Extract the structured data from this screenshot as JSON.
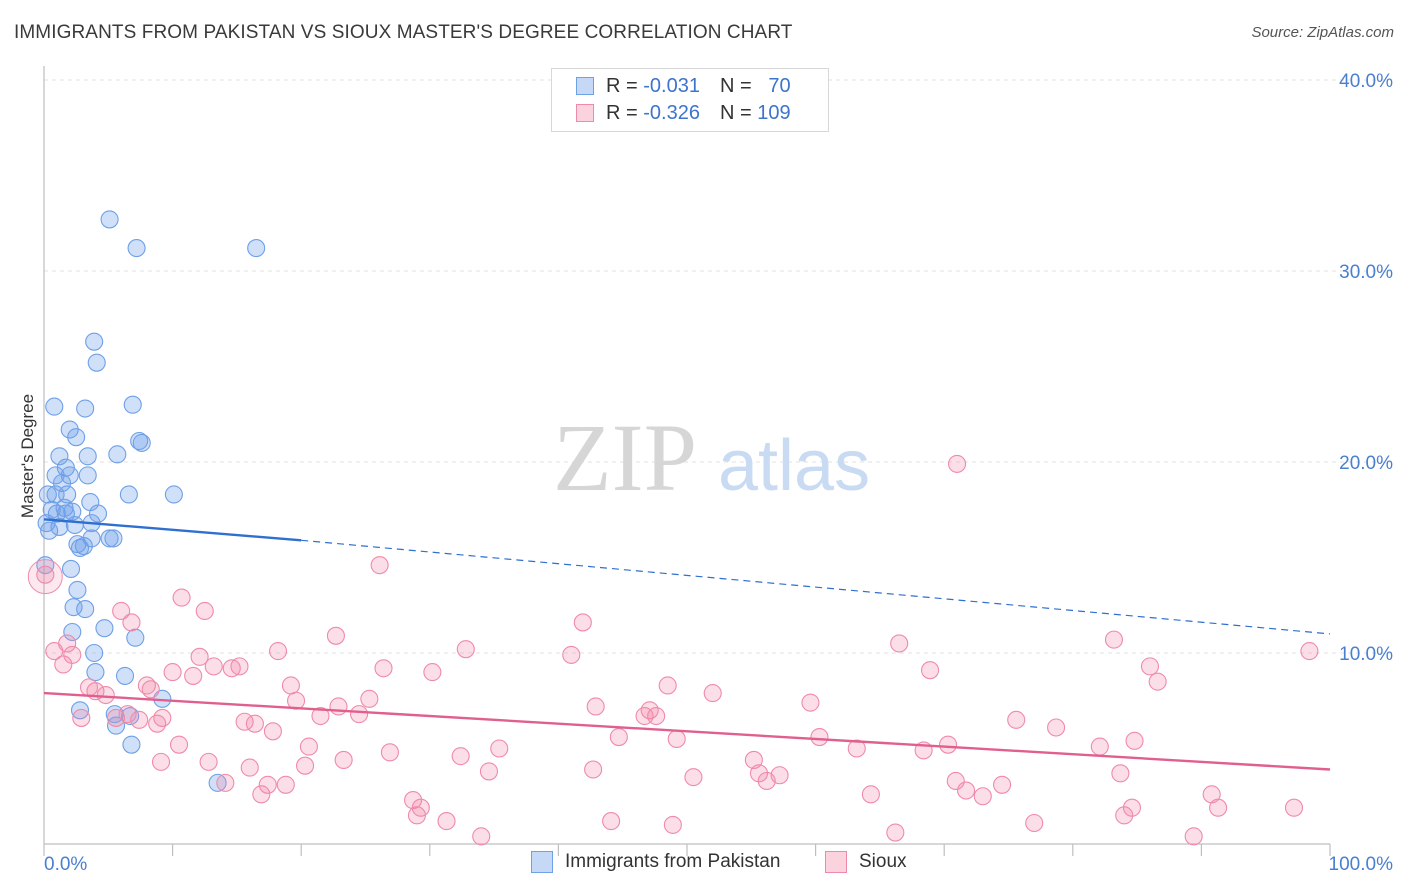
{
  "title": "IMMIGRANTS FROM PAKISTAN VS SIOUX MASTER'S DEGREE CORRELATION CHART",
  "source": "Source: ZipAtlas.com",
  "watermark": {
    "zip": "ZIP",
    "atlas": "atlas"
  },
  "legend": {
    "r_label": "R =",
    "n_label": "N =",
    "rows": [
      {
        "name": "Immigrants from Pakistan",
        "r": "-0.031",
        "n": "70",
        "color": "#6ea0e8"
      },
      {
        "name": "Sioux",
        "r": "-0.326",
        "n": "109",
        "color": "#f08aaa"
      }
    ]
  },
  "bottom_legend": [
    "Immigrants from Pakistan",
    "Sioux"
  ],
  "chart_data": {
    "type": "scatter",
    "title": "IMMIGRANTS FROM PAKISTAN VS SIOUX MASTER'S DEGREE CORRELATION CHART",
    "xlabel": "",
    "ylabel": "Master's Degree",
    "xlim": [
      0,
      100
    ],
    "ylim": [
      0,
      40
    ],
    "x_tick_labels": [
      "0.0%",
      "100.0%"
    ],
    "y_ticks": [
      10,
      20,
      30,
      40
    ],
    "y_tick_labels": [
      "10.0%",
      "20.0%",
      "30.0%",
      "40.0%"
    ],
    "grid": true,
    "series": [
      {
        "name": "Immigrants from Pakistan",
        "color": "#6ea0e8",
        "line_color": "#2f6fd0",
        "trend": {
          "x0": 0,
          "y0": 17.0,
          "x1": 20,
          "y1": 15.9,
          "dashed_to_x": 100,
          "dashed_to_y": 11.0
        },
        "points": [
          [
            5.1,
            32.7
          ],
          [
            7.2,
            31.2
          ],
          [
            16.5,
            31.2
          ],
          [
            3.9,
            26.3
          ],
          [
            4.1,
            25.2
          ],
          [
            0.8,
            22.9
          ],
          [
            3.2,
            22.8
          ],
          [
            6.9,
            23.0
          ],
          [
            2.0,
            21.7
          ],
          [
            2.5,
            21.3
          ],
          [
            7.4,
            21.1
          ],
          [
            7.6,
            21.0
          ],
          [
            1.2,
            20.3
          ],
          [
            3.4,
            20.3
          ],
          [
            5.7,
            20.4
          ],
          [
            1.7,
            19.7
          ],
          [
            2.0,
            19.3
          ],
          [
            0.9,
            19.3
          ],
          [
            3.4,
            19.3
          ],
          [
            1.4,
            18.9
          ],
          [
            0.3,
            18.3
          ],
          [
            0.9,
            18.3
          ],
          [
            1.8,
            18.3
          ],
          [
            6.6,
            18.3
          ],
          [
            10.1,
            18.3
          ],
          [
            3.6,
            17.9
          ],
          [
            1.6,
            17.6
          ],
          [
            2.2,
            17.4
          ],
          [
            0.6,
            17.5
          ],
          [
            1.0,
            17.3
          ],
          [
            4.2,
            17.3
          ],
          [
            1.7,
            17.3
          ],
          [
            0.2,
            16.8
          ],
          [
            1.2,
            16.6
          ],
          [
            2.4,
            16.7
          ],
          [
            3.7,
            16.8
          ],
          [
            0.4,
            16.4
          ],
          [
            3.7,
            16.0
          ],
          [
            5.1,
            16.0
          ],
          [
            5.4,
            16.0
          ],
          [
            2.6,
            15.7
          ],
          [
            3.1,
            15.6
          ],
          [
            2.8,
            15.5
          ],
          [
            0.1,
            14.6
          ],
          [
            2.1,
            14.4
          ],
          [
            2.6,
            13.3
          ],
          [
            2.3,
            12.4
          ],
          [
            3.2,
            12.3
          ],
          [
            2.2,
            11.1
          ],
          [
            4.7,
            11.3
          ],
          [
            7.1,
            10.8
          ],
          [
            3.9,
            10.0
          ],
          [
            4.0,
            9.0
          ],
          [
            6.3,
            8.8
          ],
          [
            9.2,
            7.6
          ],
          [
            2.8,
            7.0
          ],
          [
            5.5,
            6.8
          ],
          [
            5.6,
            6.2
          ],
          [
            6.7,
            6.7
          ],
          [
            6.8,
            5.2
          ],
          [
            13.5,
            3.2
          ]
        ]
      },
      {
        "name": "Sioux",
        "color": "#f08aaa",
        "line_color": "#e05f8f",
        "trend": {
          "x0": 0,
          "y0": 7.9,
          "x1": 100,
          "y1": 3.9
        },
        "points": [
          [
            0.1,
            14.1
          ],
          [
            0.8,
            10.1
          ],
          [
            1.5,
            9.4
          ],
          [
            1.8,
            10.5
          ],
          [
            2.2,
            9.9
          ],
          [
            2.9,
            6.6
          ],
          [
            3.5,
            8.2
          ],
          [
            4.0,
            8.0
          ],
          [
            4.8,
            7.8
          ],
          [
            5.6,
            6.6
          ],
          [
            6.0,
            12.2
          ],
          [
            6.5,
            6.8
          ],
          [
            6.8,
            11.6
          ],
          [
            7.4,
            6.5
          ],
          [
            8.0,
            8.3
          ],
          [
            8.3,
            8.1
          ],
          [
            8.8,
            6.3
          ],
          [
            9.1,
            4.3
          ],
          [
            9.2,
            6.6
          ],
          [
            10.0,
            9.0
          ],
          [
            10.5,
            5.2
          ],
          [
            10.7,
            12.9
          ],
          [
            11.6,
            8.8
          ],
          [
            12.1,
            9.8
          ],
          [
            12.5,
            12.2
          ],
          [
            12.8,
            4.3
          ],
          [
            13.2,
            9.3
          ],
          [
            14.1,
            3.2
          ],
          [
            14.6,
            9.2
          ],
          [
            15.2,
            9.3
          ],
          [
            15.6,
            6.4
          ],
          [
            16.0,
            4.0
          ],
          [
            16.4,
            6.3
          ],
          [
            16.9,
            2.6
          ],
          [
            17.4,
            3.1
          ],
          [
            17.8,
            5.9
          ],
          [
            18.2,
            10.1
          ],
          [
            18.8,
            3.1
          ],
          [
            19.2,
            8.3
          ],
          [
            19.6,
            7.5
          ],
          [
            20.3,
            4.1
          ],
          [
            20.6,
            5.1
          ],
          [
            21.5,
            6.7
          ],
          [
            22.7,
            10.9
          ],
          [
            22.9,
            7.2
          ],
          [
            23.3,
            4.4
          ],
          [
            24.5,
            6.8
          ],
          [
            25.3,
            7.6
          ],
          [
            26.1,
            14.6
          ],
          [
            26.4,
            9.2
          ],
          [
            26.9,
            4.8
          ],
          [
            28.7,
            2.3
          ],
          [
            29.0,
            1.5
          ],
          [
            29.3,
            1.9
          ],
          [
            30.2,
            9.0
          ],
          [
            31.3,
            1.2
          ],
          [
            32.4,
            4.6
          ],
          [
            32.8,
            10.2
          ],
          [
            34.0,
            0.4
          ],
          [
            34.6,
            3.8
          ],
          [
            35.4,
            5.0
          ],
          [
            41.0,
            9.9
          ],
          [
            41.9,
            11.6
          ],
          [
            42.7,
            3.9
          ],
          [
            42.9,
            7.2
          ],
          [
            44.1,
            1.2
          ],
          [
            44.7,
            5.6
          ],
          [
            46.7,
            6.7
          ],
          [
            47.1,
            7.0
          ],
          [
            47.6,
            6.7
          ],
          [
            48.5,
            8.3
          ],
          [
            48.9,
            1.0
          ],
          [
            49.2,
            5.5
          ],
          [
            50.5,
            3.5
          ],
          [
            52.0,
            7.9
          ],
          [
            55.2,
            4.4
          ],
          [
            55.6,
            3.7
          ],
          [
            56.2,
            3.3
          ],
          [
            57.2,
            3.6
          ],
          [
            59.6,
            7.4
          ],
          [
            60.3,
            5.6
          ],
          [
            63.2,
            5.0
          ],
          [
            64.3,
            2.6
          ],
          [
            66.2,
            0.6
          ],
          [
            66.5,
            10.5
          ],
          [
            68.4,
            4.9
          ],
          [
            68.9,
            9.1
          ],
          [
            70.3,
            5.2
          ],
          [
            71.0,
            19.9
          ],
          [
            70.9,
            3.3
          ],
          [
            71.7,
            2.8
          ],
          [
            73.0,
            2.5
          ],
          [
            74.5,
            3.1
          ],
          [
            75.6,
            6.5
          ],
          [
            77.0,
            1.1
          ],
          [
            78.7,
            6.1
          ],
          [
            82.1,
            5.1
          ],
          [
            83.2,
            10.7
          ],
          [
            83.7,
            3.7
          ],
          [
            84.0,
            1.5
          ],
          [
            84.6,
            1.9
          ],
          [
            84.8,
            5.4
          ],
          [
            86.0,
            9.3
          ],
          [
            86.6,
            8.5
          ],
          [
            89.4,
            0.4
          ],
          [
            90.8,
            2.6
          ],
          [
            91.3,
            1.9
          ],
          [
            97.2,
            1.9
          ],
          [
            98.4,
            10.1
          ]
        ]
      }
    ]
  }
}
